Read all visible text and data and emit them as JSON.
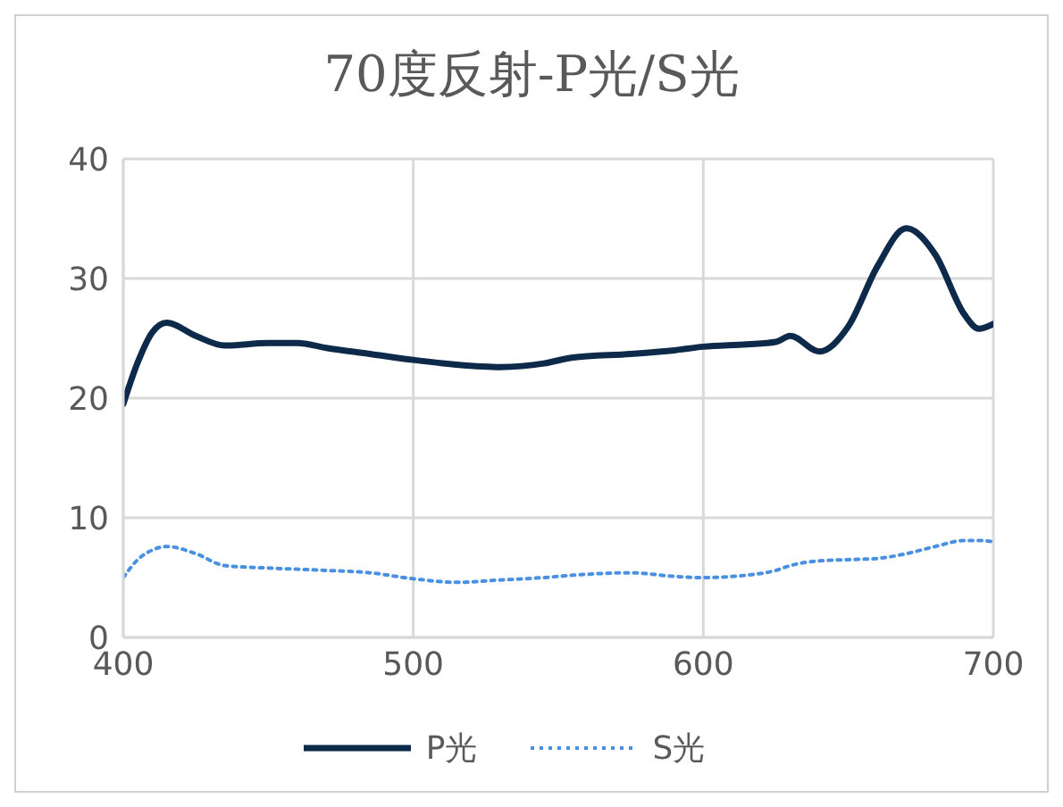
{
  "chart_data": {
    "type": "line",
    "title": "70度反射-P光/S光",
    "x": [
      400,
      405,
      410,
      415,
      425,
      435,
      450,
      460,
      470,
      485,
      500,
      515,
      530,
      545,
      555,
      575,
      590,
      600,
      615,
      625,
      630,
      640,
      650,
      660,
      670,
      680,
      690,
      695,
      700
    ],
    "series": [
      {
        "name": "P光",
        "color": "#0e2a4a",
        "line_style": "solid",
        "values": [
          19.5,
          23,
          25.5,
          26.3,
          25.2,
          24.4,
          24.6,
          24.6,
          24.2,
          23.7,
          23.2,
          22.8,
          22.6,
          22.9,
          23.4,
          23.7,
          24,
          24.3,
          24.5,
          24.7,
          25.2,
          23.9,
          26,
          31,
          34.2,
          32,
          27,
          25.8,
          26.2
        ]
      },
      {
        "name": "S光",
        "color": "#4a90e2",
        "line_style": "dotted",
        "values": [
          5,
          6.5,
          7.3,
          7.6,
          7,
          6,
          5.8,
          5.7,
          5.6,
          5.4,
          4.9,
          4.6,
          4.8,
          5,
          5.2,
          5.4,
          5.1,
          5,
          5.2,
          5.6,
          6,
          6.4,
          6.5,
          6.6,
          7,
          7.6,
          8.1,
          8.1,
          8
        ]
      }
    ],
    "xlim": [
      400,
      700
    ],
    "xticks": [
      400,
      500,
      600,
      700
    ],
    "ylim": [
      0,
      40
    ],
    "yticks": [
      0,
      10,
      20,
      30,
      40
    ],
    "grid": true,
    "legend": "bottom",
    "marker": "none"
  }
}
